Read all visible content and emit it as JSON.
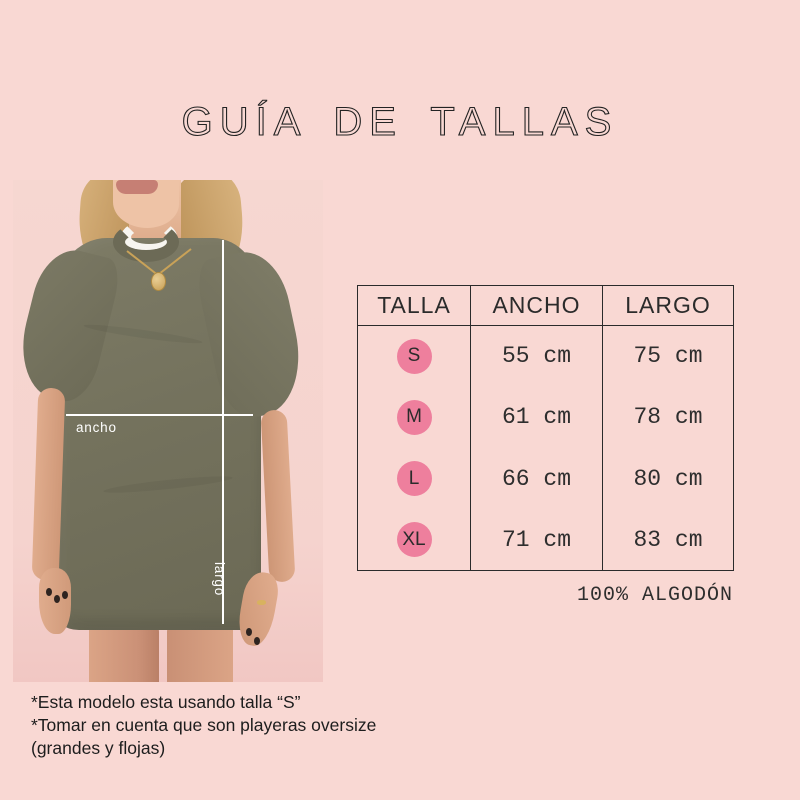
{
  "title": "GUÍA DE TALLAS",
  "photo": {
    "width_label": "ancho",
    "length_label": "largo"
  },
  "size_table": {
    "headers": {
      "talla": "TALLA",
      "ancho": "ANCHO",
      "largo": "LARGO"
    },
    "rows": [
      {
        "talla": "S",
        "ancho": "55 cm",
        "largo": "75 cm"
      },
      {
        "talla": "M",
        "ancho": "61 cm",
        "largo": "78 cm"
      },
      {
        "talla": "L",
        "ancho": "66 cm",
        "largo": "80 cm"
      },
      {
        "talla": "XL",
        "ancho": "71 cm",
        "largo": "83 cm"
      }
    ]
  },
  "material_note": "100% ALGODÓN",
  "footnotes": {
    "line1": "*Esta modelo esta usando talla “S”",
    "line2": "*Tomar en cuenta que son playeras oversize",
    "line3": "(grandes y flojas)"
  },
  "colors": {
    "background": "#f9d8d3",
    "accent_pink": "#ee7f9d",
    "shirt_olive": "#74725d",
    "ink": "#2b2b2b",
    "measure_line": "#ffffff"
  }
}
